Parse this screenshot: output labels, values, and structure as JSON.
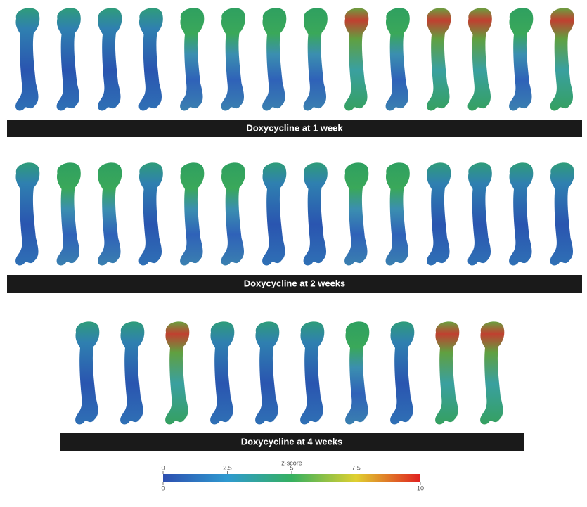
{
  "panels": [
    {
      "label": "Doxycycline at 1 week"
    },
    {
      "label": "Doxycycline at 2 weeks"
    },
    {
      "label": "Doxycycline at 4 weeks"
    }
  ],
  "colorbar": {
    "title": "z-score",
    "ticks": [
      0,
      2.5,
      5,
      7.5
    ],
    "range": [
      0,
      10
    ]
  }
}
